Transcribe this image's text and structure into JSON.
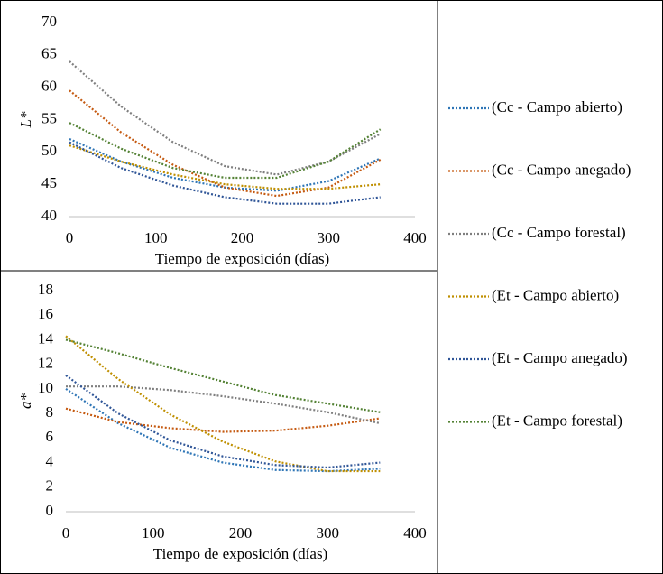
{
  "chart_data": [
    {
      "type": "line",
      "y_label": "L*",
      "x_label": "Tiempo de exposición (días)",
      "x": [
        0,
        60,
        120,
        180,
        240,
        300,
        360
      ],
      "xlim": [
        0,
        400
      ],
      "xticks": [
        0,
        100,
        200,
        300,
        400
      ],
      "ylim": [
        40,
        70
      ],
      "yticks": [
        40,
        45,
        50,
        55,
        60,
        65,
        70
      ],
      "legend": "right",
      "series": [
        {
          "name": "(Cc - Campo abierto)",
          "color": "#2e75b6",
          "values": [
            52,
            48.5,
            46,
            44.5,
            44,
            45.5,
            49
          ]
        },
        {
          "name": "(Cc - Campo anegado)",
          "color": "#c55a11",
          "values": [
            59.5,
            53,
            48,
            44.5,
            43.2,
            44.5,
            48.8
          ]
        },
        {
          "name": "(Cc - Campo forestal)",
          "color": "#7f7f7f",
          "values": [
            64,
            57,
            51.5,
            47.8,
            46.5,
            48.5,
            52.8
          ]
        },
        {
          "name": "(Et - Campo abierto)",
          "color": "#bf8f00",
          "values": [
            51,
            48.5,
            46.5,
            45,
            44.3,
            44.3,
            45
          ]
        },
        {
          "name": "(Et - Campo anegado)",
          "color": "#2f5597",
          "values": [
            51.5,
            47.5,
            44.8,
            43,
            42,
            42,
            43
          ]
        },
        {
          "name": "(Et - Campo forestal)",
          "color": "#548235",
          "values": [
            54.5,
            50.5,
            47.5,
            46,
            46,
            48.5,
            53.5
          ]
        }
      ]
    },
    {
      "type": "line",
      "y_label": "a*",
      "x_label": "Tiempo de exposición (días)",
      "x": [
        0,
        60,
        120,
        180,
        240,
        300,
        360
      ],
      "xlim": [
        0,
        400
      ],
      "xticks": [
        0,
        100,
        200,
        300,
        400
      ],
      "ylim": [
        0,
        18
      ],
      "yticks": [
        0,
        2,
        4,
        6,
        8,
        10,
        12,
        14,
        16,
        18
      ],
      "series": [
        {
          "color": "#2e75b6",
          "values": [
            10,
            7.2,
            5.2,
            4,
            3.4,
            3.3,
            3.5
          ]
        },
        {
          "color": "#c55a11",
          "values": [
            8.4,
            7.3,
            6.8,
            6.5,
            6.6,
            7,
            7.6
          ]
        },
        {
          "color": "#7f7f7f",
          "values": [
            10.2,
            10.2,
            9.9,
            9.4,
            8.8,
            8.1,
            7.2
          ]
        },
        {
          "color": "#bf8f00",
          "values": [
            14.3,
            10.8,
            7.9,
            5.7,
            4.1,
            3.3,
            3.3
          ]
        },
        {
          "color": "#2f5597",
          "values": [
            11.1,
            8,
            5.8,
            4.5,
            3.8,
            3.6,
            4
          ]
        },
        {
          "color": "#548235",
          "values": [
            14,
            12.9,
            11.7,
            10.6,
            9.5,
            8.8,
            8.1
          ]
        }
      ]
    }
  ]
}
